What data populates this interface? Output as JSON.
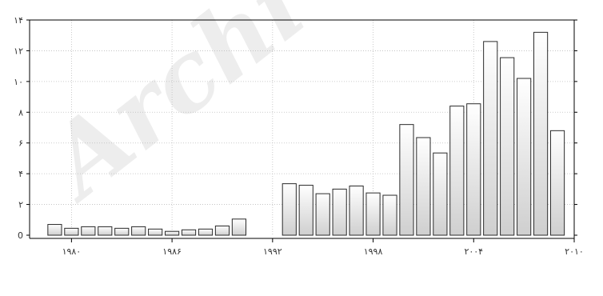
{
  "watermark": "Archi",
  "chart_data": {
    "type": "bar",
    "title": "",
    "xlabel": "",
    "ylabel": "",
    "x": [
      1979,
      1980,
      1981,
      1982,
      1983,
      1984,
      1985,
      1986,
      1987,
      1988,
      1989,
      1990,
      1991,
      1992,
      1993,
      1994,
      1995,
      1996,
      1997,
      1998,
      1999,
      2000,
      2001,
      2002,
      2003,
      2004,
      2005,
      2006,
      2007,
      2008,
      2009
    ],
    "values": [
      0.7,
      0.45,
      0.55,
      0.55,
      0.45,
      0.55,
      0.4,
      0.25,
      0.35,
      0.4,
      0.6,
      1.05,
      null,
      null,
      3.35,
      3.25,
      2.7,
      3.0,
      3.2,
      2.75,
      2.6,
      7.2,
      6.35,
      5.35,
      8.4,
      8.55,
      12.6,
      11.55,
      10.2,
      13.2,
      6.8
    ],
    "xlim": [
      1977.5,
      2010
    ],
    "ylim": [
      0,
      14
    ],
    "x_ticks": [
      1980,
      1986,
      1992,
      1998,
      2004,
      2010
    ],
    "x_tick_labels": [
      "۱۹۸۰",
      "۱۹۸۶",
      "۱۹۹۲",
      "۱۹۹۸",
      "۲۰۰۴",
      "۲۰۱۰"
    ],
    "y_ticks": [
      0,
      2,
      4,
      6,
      8,
      10,
      12,
      14
    ],
    "y_tick_labels": [
      "0",
      "۲",
      "۴",
      "۶",
      "۸",
      "۱۰",
      "۱۲",
      "۱۴"
    ],
    "grid": true,
    "bar_fill": [
      "#ffffff",
      "#cfcfcf"
    ],
    "bar_stroke": "#2a2a2a"
  }
}
